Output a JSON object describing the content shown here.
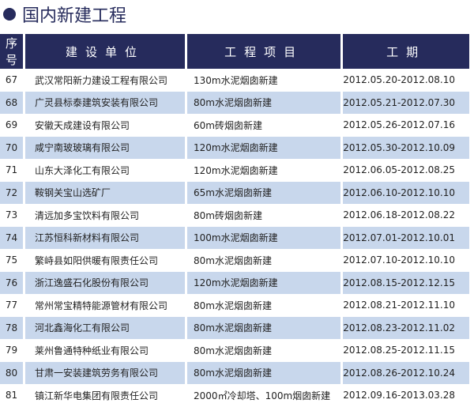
{
  "title": "国内新建工程",
  "headers": [
    "序号",
    "建设单位",
    "工程项目",
    "工期"
  ],
  "rows": [
    [
      "67",
      "武汉常阳新力建设工程有限公司",
      "130m水泥烟囱新建",
      "2012.05.20-2012.08.10"
    ],
    [
      "68",
      "广灵县标泰建筑安装有限公司",
      "80m水泥烟囱新建",
      "2012.05.21-2012.07.30"
    ],
    [
      "69",
      "安徽天成建设有限公司",
      "60m砖烟囱新建",
      "2012.05.26-2012.07.16"
    ],
    [
      "70",
      "咸宁南玻玻璃有限公司",
      "120m水泥烟囱新建",
      "2012.05.30-2012.10.09"
    ],
    [
      "71",
      "山东大泽化工有限公司",
      "120m水泥烟囱新建",
      "2012.06.05-2012.08.25"
    ],
    [
      "72",
      "鞍钢关宝山选矿厂",
      "65m水泥烟囱新建",
      "2012.06.10-2012.10.10"
    ],
    [
      "73",
      "清远加多宝饮料有限公司",
      "80m砖烟囱新建",
      "2012.06.18-2012.08.22"
    ],
    [
      "74",
      "江苏恒科新材料有限公司",
      "100m水泥烟囱新建",
      "2012.07.01-2012.10.01"
    ],
    [
      "75",
      "繁峙县如阳供暖有限责任公司",
      "80m水泥烟囱新建",
      "2012.07.10-2012.10.10"
    ],
    [
      "76",
      "浙江逸盛石化股份有限公司",
      "120m水泥烟囱新建",
      "2012.08.15-2012.12.15"
    ],
    [
      "77",
      "常州常宝精特能源管材有限公司",
      "80m水泥烟囱新建",
      "2012.08.21-2012.11.10"
    ],
    [
      "78",
      "河北鑫海化工有限公司",
      "80m水泥烟囱新建",
      "2012.08.23-2012.11.02"
    ],
    [
      "79",
      "莱州鲁通特种纸业有限公司",
      "80m水泥烟囱新建",
      "2012.08.25-2012.11.15"
    ],
    [
      "80",
      "甘肃一安装建筑劳务有限公司",
      "80m水泥烟囱新建",
      "2012.08.26-2012.10.24"
    ],
    [
      "81",
      "镇江新华电集团有限责任公司",
      "2000㎡冷却塔、100m烟囱新建",
      "2012.09.16-2013.03.28"
    ]
  ],
  "colors": {
    "header": "#262b5c",
    "alt_row": "#c8d7ec"
  }
}
